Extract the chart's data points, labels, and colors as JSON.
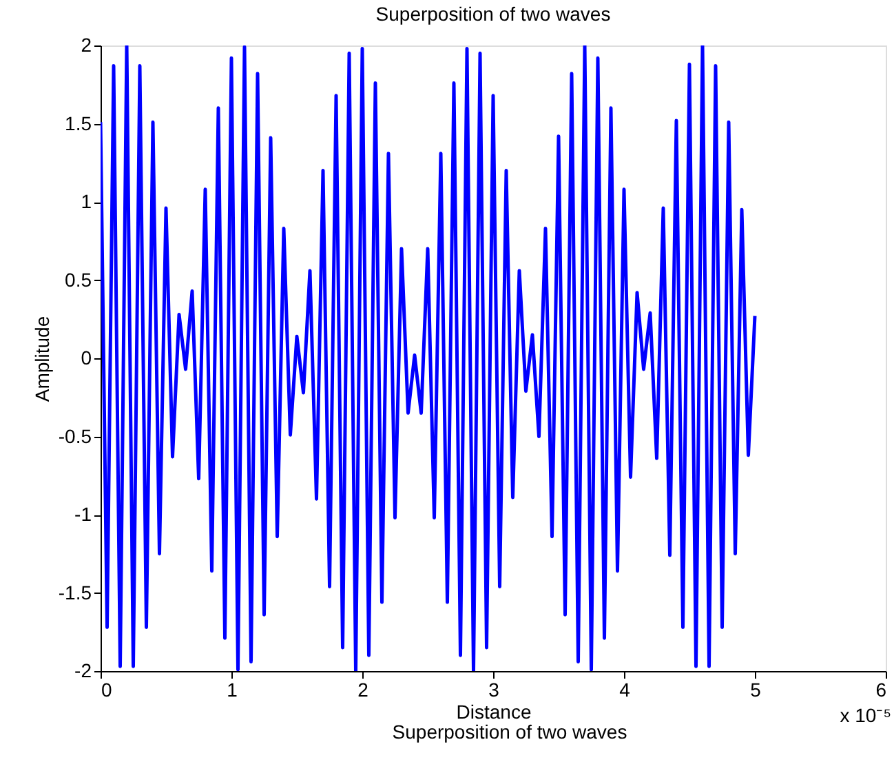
{
  "chart_data": {
    "type": "line",
    "title": "Superposition of two waves",
    "xlabel": "Distance",
    "ylabel": "Amplitude",
    "annotations": [
      "x 10⁻⁵",
      "Superposition of two waves"
    ],
    "x": [
      0,
      0.05,
      0.1,
      0.15,
      0.2,
      0.25,
      0.3,
      0.35,
      0.4,
      0.45,
      0.5,
      0.55,
      0.6,
      0.65,
      0.7,
      0.75,
      0.8,
      0.85,
      0.9,
      0.95,
      1,
      1.05,
      1.1,
      1.15,
      1.2,
      1.25,
      1.3,
      1.35,
      1.4,
      1.45,
      1.5,
      1.55,
      1.6,
      1.65,
      1.7,
      1.75,
      1.8,
      1.85,
      1.9,
      1.95,
      2,
      2.05,
      2.1,
      2.15,
      2.2,
      2.25,
      2.3,
      2.35,
      2.4,
      2.45,
      2.5,
      2.55,
      2.6,
      2.65,
      2.7,
      2.75,
      2.8,
      2.85,
      2.9,
      2.95,
      3,
      3.05,
      3.1,
      3.15,
      3.2,
      3.25,
      3.3,
      3.35,
      3.4,
      3.45,
      3.5,
      3.55,
      3.6,
      3.65,
      3.7,
      3.75,
      3.8,
      3.85,
      3.9,
      3.95,
      4,
      4.05,
      4.1,
      4.15,
      4.2,
      4.25,
      4.3,
      4.35,
      4.4,
      4.45,
      4.5,
      4.55,
      4.6,
      4.65,
      4.7,
      4.75,
      4.8,
      4.85,
      4.9,
      4.95,
      5
    ],
    "series": [
      {
        "color": "#0000ff",
        "values": [
          1.51,
          -1.72,
          1.87,
          -1.97,
          2.0,
          -1.97,
          1.87,
          -1.72,
          1.51,
          -1.25,
          0.96,
          -0.63,
          0.28,
          -0.07,
          0.43,
          -0.77,
          1.08,
          -1.36,
          1.6,
          -1.79,
          1.92,
          -1.99,
          1.99,
          -1.94,
          1.82,
          -1.64,
          1.41,
          -1.14,
          0.83,
          -0.49,
          0.14,
          -0.22,
          0.56,
          -0.9,
          1.2,
          -1.46,
          1.68,
          -1.85,
          1.95,
          -2.0,
          1.98,
          -1.9,
          1.76,
          -1.56,
          1.31,
          -1.02,
          0.7,
          -0.35,
          0.02,
          -0.35,
          0.7,
          -1.02,
          1.31,
          -1.56,
          1.76,
          -1.9,
          1.98,
          -2.0,
          1.95,
          -1.85,
          1.68,
          -1.46,
          1.2,
          -0.89,
          0.56,
          -0.21,
          0.15,
          -0.5,
          0.83,
          -1.14,
          1.42,
          -1.64,
          1.82,
          -1.94,
          2.0,
          -1.99,
          1.92,
          -1.79,
          1.6,
          -1.36,
          1.08,
          -0.76,
          0.42,
          -0.07,
          0.29,
          -0.64,
          0.96,
          -1.26,
          1.52,
          -1.72,
          1.88,
          -1.97,
          2.0,
          -1.97,
          1.87,
          -1.72,
          1.51,
          -1.25,
          0.95,
          -0.62,
          0.27
        ]
      }
    ],
    "xlim": [
      0,
      6
    ],
    "xticks": [
      0,
      1,
      2,
      3,
      4,
      5,
      6
    ],
    "ylim": [
      -2,
      2
    ],
    "yticks": [
      -2,
      -1.5,
      -1,
      -0.5,
      0,
      0.5,
      1,
      1.5,
      2
    ],
    "grid": false,
    "line_style": "solid"
  }
}
